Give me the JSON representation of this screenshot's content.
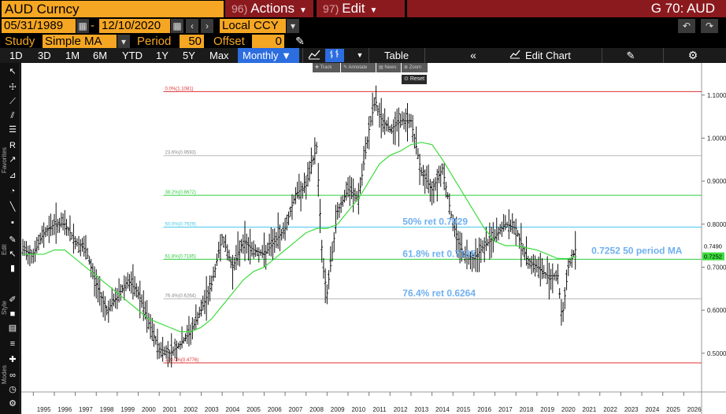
{
  "topbar": {
    "ticker": "AUD Curncy",
    "actions_num": "96)",
    "actions_label": "Actions",
    "edit_num": "97)",
    "edit_label": "Edit",
    "right_title": "G 70: AUD"
  },
  "dates": {
    "start": "05/31/1989",
    "separator": "-",
    "end": "12/10/2020",
    "currency": "Local CCY"
  },
  "study": {
    "study_label": "Study",
    "study_value": "Simple MA",
    "period_label": "Period",
    "period_value": "50",
    "offset_label": "Offset",
    "offset_value": "0"
  },
  "timeframes": [
    "1D",
    "3D",
    "1M",
    "6M",
    "YTD",
    "1Y",
    "5Y",
    "Max"
  ],
  "timeframe_active": "Monthly",
  "toolbar": {
    "table_label": "Table",
    "edit_chart_label": "Edit Chart"
  },
  "mini_tools": {
    "track": "Track",
    "annotate": "Annotate",
    "news": "News",
    "zoom": "Zoom",
    "reset": "Reset"
  },
  "left_labels": [
    "Favorites",
    "Edit",
    "Style",
    "Modes"
  ],
  "chart_data": {
    "type": "line",
    "x_ticks": [
      "1995",
      "1996",
      "1997",
      "1998",
      "1999",
      "2000",
      "2001",
      "2002",
      "2003",
      "2004",
      "2005",
      "2006",
      "2007",
      "2008",
      "2009",
      "2010",
      "2011",
      "2012",
      "2013",
      "2014",
      "2015",
      "2016",
      "2017",
      "2018",
      "2019",
      "2020",
      "2021",
      "2022",
      "2023",
      "2024",
      "2025",
      "2026"
    ],
    "y_ticks": [
      "1.1000",
      "1.0000",
      "0.9000",
      "0.8000",
      "0.7000",
      "0.6000",
      "0.5000"
    ],
    "ylim": [
      0.41,
      1.16
    ],
    "fib_levels": [
      {
        "label": "0.0%(1.1081)",
        "value": 1.1081,
        "color": "#e03030"
      },
      {
        "label": "23.6%(0.9593)",
        "value": 0.9593,
        "color": "#b8b8b8"
      },
      {
        "label": "38.2%(0.8672)",
        "value": 0.8672,
        "color": "#2ecc40"
      },
      {
        "label": "50.0%(0.7929)",
        "value": 0.7929,
        "color": "#3fc6e8"
      },
      {
        "label": "61.8%(0.7185)",
        "value": 0.7185,
        "color": "#2ecc40"
      },
      {
        "label": "76.4%(0.6264)",
        "value": 0.6264,
        "color": "#b8b8b8"
      },
      {
        "label": "100.0%(0.4776)",
        "value": 0.4776,
        "color": "#e03030"
      }
    ],
    "annotations": [
      {
        "text": "50% ret 0.7929",
        "value": 0.7929,
        "year": 2012.6
      },
      {
        "text": "61.8% ret 0.7185",
        "value": 0.7185,
        "year": 2012.6
      },
      {
        "text": "76.4% ret 0.6264",
        "value": 0.6264,
        "year": 2012.6
      },
      {
        "text": "0.7252 50 period MA",
        "value": 0.7252,
        "year": 2021.6
      }
    ],
    "last_price": {
      "value": 0.749,
      "label": "0.7490"
    },
    "last_ma": {
      "value": 0.7252,
      "label": "0.7252"
    },
    "series": [
      {
        "name": "AUD",
        "x": [
          1994.5,
          1995.0,
          1995.5,
          1996.0,
          1996.5,
          1997.0,
          1997.5,
          1998.0,
          1998.5,
          1999.0,
          1999.5,
          2000.0,
          2000.5,
          2001.0,
          2001.5,
          2002.0,
          2002.5,
          2003.0,
          2003.5,
          2004.0,
          2004.5,
          2005.0,
          2005.5,
          2006.0,
          2006.5,
          2007.0,
          2007.5,
          2008.0,
          2008.5,
          2008.8,
          2009.0,
          2009.5,
          2010.0,
          2010.5,
          2011.0,
          2011.3,
          2011.5,
          2012.0,
          2012.5,
          2013.0,
          2013.5,
          2014.0,
          2014.5,
          2015.0,
          2015.5,
          2016.0,
          2016.5,
          2017.0,
          2017.5,
          2018.0,
          2018.5,
          2019.0,
          2019.5,
          2020.0,
          2020.2,
          2020.5,
          2020.9
        ],
        "values": [
          0.74,
          0.73,
          0.78,
          0.8,
          0.8,
          0.76,
          0.74,
          0.66,
          0.6,
          0.63,
          0.67,
          0.64,
          0.57,
          0.51,
          0.5,
          0.52,
          0.55,
          0.6,
          0.66,
          0.77,
          0.7,
          0.76,
          0.74,
          0.73,
          0.76,
          0.79,
          0.87,
          0.89,
          0.98,
          0.7,
          0.64,
          0.83,
          0.88,
          0.86,
          1.02,
          1.09,
          1.05,
          1.02,
          1.04,
          1.04,
          0.92,
          0.88,
          0.93,
          0.8,
          0.73,
          0.72,
          0.75,
          0.77,
          0.8,
          0.79,
          0.72,
          0.7,
          0.68,
          0.68,
          0.58,
          0.7,
          0.749
        ]
      },
      {
        "name": "50 period MA",
        "x": [
          1994.5,
          1995.0,
          1995.5,
          1996.0,
          1996.5,
          1997.0,
          1997.5,
          1998.0,
          1998.5,
          1999.0,
          1999.5,
          2000.0,
          2000.5,
          2001.0,
          2001.5,
          2002.0,
          2002.5,
          2003.0,
          2003.5,
          2004.0,
          2004.5,
          2005.0,
          2005.5,
          2006.0,
          2006.5,
          2007.0,
          2007.5,
          2008.0,
          2008.5,
          2009.0,
          2009.5,
          2010.0,
          2010.5,
          2011.0,
          2011.5,
          2012.0,
          2012.5,
          2013.0,
          2013.5,
          2014.0,
          2014.5,
          2015.0,
          2015.5,
          2016.0,
          2016.5,
          2017.0,
          2017.5,
          2018.0,
          2018.5,
          2019.0,
          2019.5,
          2020.0,
          2020.5,
          2020.9
        ],
        "values": [
          0.73,
          0.73,
          0.73,
          0.74,
          0.74,
          0.72,
          0.7,
          0.68,
          0.66,
          0.64,
          0.62,
          0.6,
          0.58,
          0.57,
          0.56,
          0.55,
          0.55,
          0.56,
          0.58,
          0.61,
          0.64,
          0.67,
          0.69,
          0.7,
          0.72,
          0.74,
          0.76,
          0.78,
          0.79,
          0.79,
          0.8,
          0.83,
          0.86,
          0.9,
          0.94,
          0.96,
          0.97,
          0.985,
          0.99,
          0.985,
          0.95,
          0.91,
          0.87,
          0.83,
          0.79,
          0.76,
          0.75,
          0.75,
          0.745,
          0.74,
          0.73,
          0.72,
          0.72,
          0.7252
        ]
      }
    ]
  }
}
